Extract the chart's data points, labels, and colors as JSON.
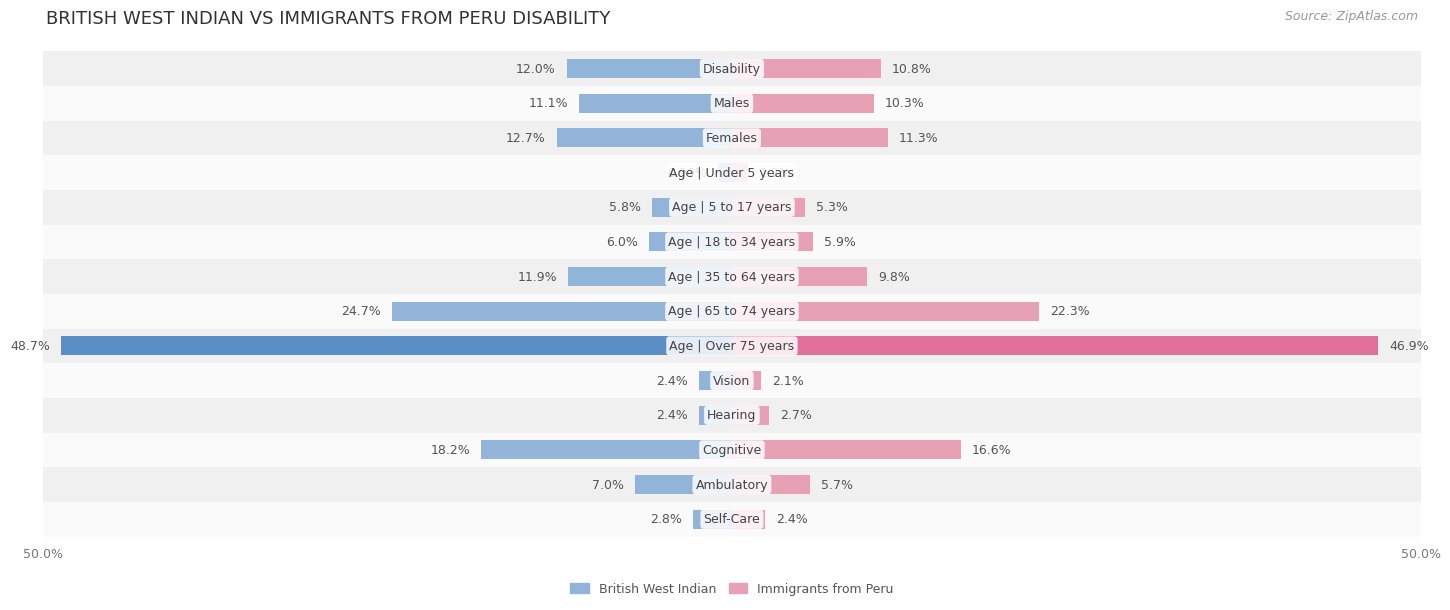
{
  "title": "BRITISH WEST INDIAN VS IMMIGRANTS FROM PERU DISABILITY",
  "source": "Source: ZipAtlas.com",
  "categories": [
    "Disability",
    "Males",
    "Females",
    "Age | Under 5 years",
    "Age | 5 to 17 years",
    "Age | 18 to 34 years",
    "Age | 35 to 64 years",
    "Age | 65 to 74 years",
    "Age | Over 75 years",
    "Vision",
    "Hearing",
    "Cognitive",
    "Ambulatory",
    "Self-Care"
  ],
  "left_values": [
    12.0,
    11.1,
    12.7,
    0.99,
    5.8,
    6.0,
    11.9,
    24.7,
    48.7,
    2.4,
    2.4,
    18.2,
    7.0,
    2.8
  ],
  "right_values": [
    10.8,
    10.3,
    11.3,
    1.2,
    5.3,
    5.9,
    9.8,
    22.3,
    46.9,
    2.1,
    2.7,
    16.6,
    5.7,
    2.4
  ],
  "left_label": "British West Indian",
  "right_label": "Immigrants from Peru",
  "left_color": "#92b4d8",
  "right_color": "#e8a0b4",
  "left_color_dark": "#5b8ec4",
  "right_color_dark": "#e0709a",
  "axis_max": 50.0,
  "bg_color": "#ffffff",
  "row_bg_even": "#f0f0f0",
  "row_bg_odd": "#fafafa",
  "bar_height": 0.55,
  "title_fontsize": 13,
  "label_fontsize": 9,
  "tick_fontsize": 9,
  "source_fontsize": 9,
  "value_label_fontsize": 9
}
